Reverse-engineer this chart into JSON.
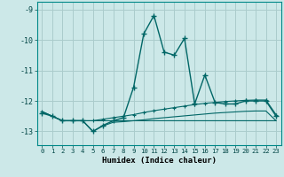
{
  "title": "",
  "xlabel": "Humidex (Indice chaleur)",
  "bg_color": "#cce8e8",
  "grid_color": "#aacccc",
  "line_color": "#006666",
  "xlim": [
    -0.5,
    23.5
  ],
  "ylim": [
    -13.45,
    -8.75
  ],
  "yticks": [
    -13,
    -12,
    -11,
    -10,
    -9
  ],
  "xticks": [
    0,
    1,
    2,
    3,
    4,
    5,
    6,
    7,
    8,
    9,
    10,
    11,
    12,
    13,
    14,
    15,
    16,
    17,
    18,
    19,
    20,
    21,
    22,
    23
  ],
  "series1": [
    [
      0,
      -12.4
    ],
    [
      1,
      -12.5
    ],
    [
      2,
      -12.65
    ],
    [
      3,
      -12.65
    ],
    [
      4,
      -12.65
    ],
    [
      5,
      -13.0
    ],
    [
      6,
      -12.8
    ],
    [
      7,
      -12.65
    ],
    [
      8,
      -12.55
    ],
    [
      9,
      -11.55
    ],
    [
      10,
      -9.8
    ],
    [
      11,
      -9.2
    ],
    [
      12,
      -10.4
    ],
    [
      13,
      -10.5
    ],
    [
      14,
      -9.95
    ],
    [
      15,
      -12.1
    ],
    [
      16,
      -11.15
    ],
    [
      17,
      -12.05
    ],
    [
      18,
      -12.1
    ],
    [
      19,
      -12.1
    ],
    [
      20,
      -12.0
    ],
    [
      21,
      -12.0
    ],
    [
      22,
      -12.0
    ],
    [
      23,
      -12.5
    ]
  ],
  "series2": [
    [
      0,
      -12.35
    ],
    [
      1,
      -12.5
    ],
    [
      2,
      -12.65
    ],
    [
      3,
      -12.65
    ],
    [
      4,
      -12.65
    ],
    [
      5,
      -12.65
    ],
    [
      6,
      -12.6
    ],
    [
      7,
      -12.55
    ],
    [
      8,
      -12.5
    ],
    [
      9,
      -12.45
    ],
    [
      10,
      -12.38
    ],
    [
      11,
      -12.32
    ],
    [
      12,
      -12.27
    ],
    [
      13,
      -12.22
    ],
    [
      14,
      -12.17
    ],
    [
      15,
      -12.12
    ],
    [
      16,
      -12.08
    ],
    [
      17,
      -12.05
    ],
    [
      18,
      -12.02
    ],
    [
      19,
      -12.0
    ],
    [
      20,
      -11.98
    ],
    [
      21,
      -11.97
    ],
    [
      22,
      -11.97
    ],
    [
      23,
      -12.45
    ]
  ],
  "series3": [
    [
      0,
      -12.35
    ],
    [
      1,
      -12.5
    ],
    [
      2,
      -12.65
    ],
    [
      3,
      -12.65
    ],
    [
      4,
      -12.65
    ],
    [
      5,
      -12.65
    ],
    [
      6,
      -12.65
    ],
    [
      7,
      -12.65
    ],
    [
      8,
      -12.65
    ],
    [
      9,
      -12.65
    ],
    [
      10,
      -12.65
    ],
    [
      11,
      -12.65
    ],
    [
      12,
      -12.65
    ],
    [
      13,
      -12.65
    ],
    [
      14,
      -12.65
    ],
    [
      15,
      -12.65
    ],
    [
      16,
      -12.65
    ],
    [
      17,
      -12.65
    ],
    [
      18,
      -12.65
    ],
    [
      19,
      -12.65
    ],
    [
      20,
      -12.65
    ],
    [
      21,
      -12.65
    ],
    [
      22,
      -12.65
    ],
    [
      23,
      -12.65
    ]
  ],
  "series4": [
    [
      0,
      -12.35
    ],
    [
      1,
      -12.5
    ],
    [
      2,
      -12.65
    ],
    [
      3,
      -12.65
    ],
    [
      4,
      -12.65
    ],
    [
      5,
      -13.0
    ],
    [
      6,
      -12.82
    ],
    [
      7,
      -12.7
    ],
    [
      8,
      -12.68
    ],
    [
      9,
      -12.65
    ],
    [
      10,
      -12.62
    ],
    [
      11,
      -12.58
    ],
    [
      12,
      -12.55
    ],
    [
      13,
      -12.52
    ],
    [
      14,
      -12.49
    ],
    [
      15,
      -12.46
    ],
    [
      16,
      -12.43
    ],
    [
      17,
      -12.4
    ],
    [
      18,
      -12.38
    ],
    [
      19,
      -12.36
    ],
    [
      20,
      -12.34
    ],
    [
      21,
      -12.33
    ],
    [
      22,
      -12.33
    ],
    [
      23,
      -12.65
    ]
  ]
}
